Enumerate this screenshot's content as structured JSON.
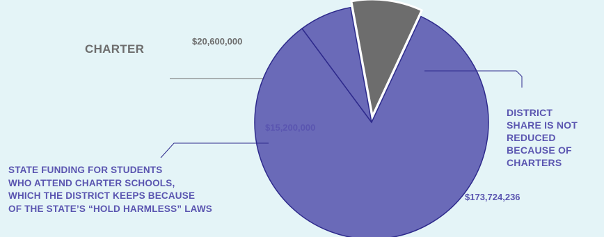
{
  "chart_data": {
    "type": "pie",
    "slices": [
      {
        "key": "district",
        "category": "DISTRICT\nSHARE IS NOT\nREDUCED\nBECAUSE OF\nCHARTERS",
        "value_label": "$173,724,236",
        "value": 173724236,
        "color": "#6a6ab8"
      },
      {
        "key": "state",
        "category": "STATE FUNDING FOR STUDENTS\nWHO ATTEND CHARTER SCHOOLS,\nWHICH THE DISTRICT KEEPS BECAUSE\nOF THE STATE’S “HOLD HARMLESS” LAWS",
        "value_label": "$15,200,000",
        "value": 15200000,
        "color": "#6a6ab8"
      },
      {
        "key": "charter",
        "category": "CHARTER",
        "value_label": "$20,600,000",
        "value": 20600000,
        "color": "#6d6d6d",
        "exploded": true
      }
    ]
  },
  "colors": {
    "background": "#e4f4f7",
    "district_fill": "#6a6ab8",
    "district_stroke": "#2e2a8c",
    "charter_fill": "#6d6d6d",
    "label_purple": "#5a55b0",
    "label_gray": "#6d6d6d"
  }
}
